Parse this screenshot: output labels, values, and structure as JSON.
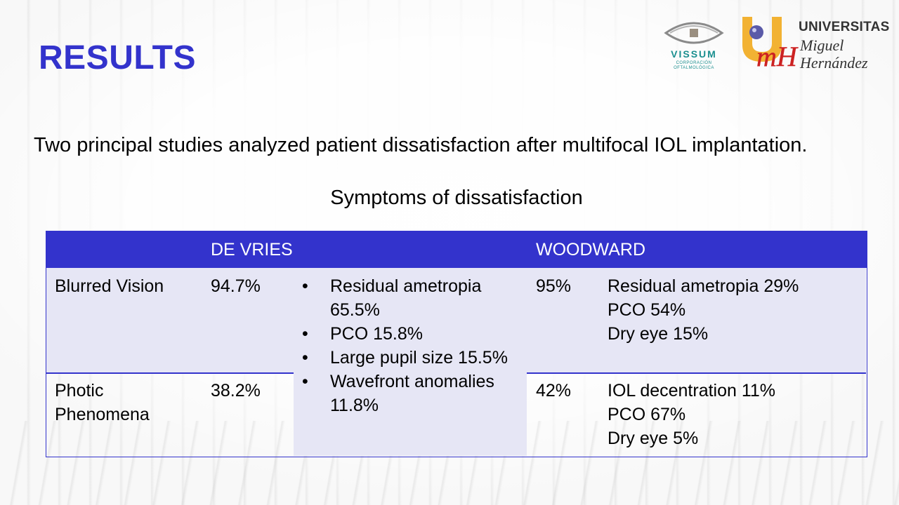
{
  "title": "RESULTS",
  "intro": "Two principal studies analyzed patient dissatisfaction after multifocal IOL implantation.",
  "caption": "Symptoms of dissatisfaction",
  "logos": {
    "vissum": {
      "name": "VISSUM",
      "sub_line1": "CORPORACIÓN",
      "sub_line2": "OFTALMOLÓGICA",
      "color": "#1b8f8f"
    },
    "umh": {
      "line1": "UNIVERSITAS",
      "line2": "Miguel",
      "line3": "Hernández",
      "mark": "mH",
      "accent": "#f2b233",
      "red": "#cc2222"
    }
  },
  "colors": {
    "accent": "#3333cc",
    "shade": "#e6e6f5"
  },
  "table": {
    "headers": {
      "empty": "",
      "devries": "DE VRIES",
      "woodward": "WOODWARD"
    },
    "rows": [
      {
        "symptom": "Blurred Vision",
        "devries": "94.7%",
        "woodward": "95%",
        "woodward_causes": [
          "Residual ametropia 29%",
          "PCO 54%",
          "Dry eye 15%"
        ]
      },
      {
        "symptom": "Photic Phenomena",
        "devries": "38.2%",
        "woodward": "42%",
        "woodward_causes": [
          "IOL decentration 11%",
          "PCO 67%",
          "Dry eye 5%"
        ]
      }
    ],
    "devries_causes": [
      "Residual ametropia 65.5%",
      "PCO 15.8%",
      "Large pupil size 15.5%",
      "Wavefront anomalies 11.8%"
    ]
  }
}
